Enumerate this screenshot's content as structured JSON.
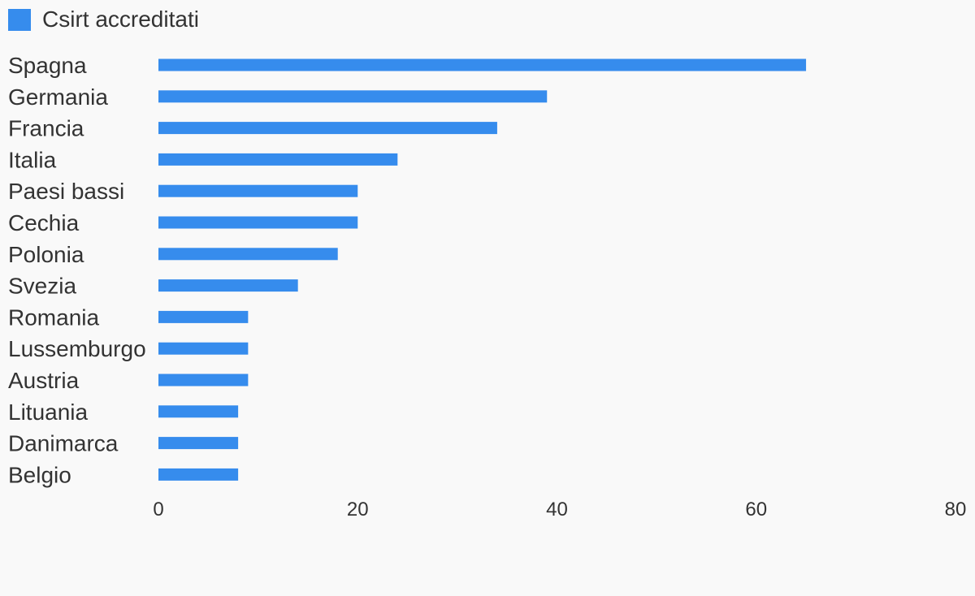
{
  "chart_data": {
    "type": "bar",
    "orientation": "horizontal",
    "categories": [
      "Spagna",
      "Germania",
      "Francia",
      "Italia",
      "Paesi bassi",
      "Cechia",
      "Polonia",
      "Svezia",
      "Romania",
      "Lussemburgo",
      "Austria",
      "Lituania",
      "Danimarca",
      "Belgio"
    ],
    "series": [
      {
        "name": "Csirt accreditati",
        "color": "#368ced",
        "values": [
          65,
          39,
          34,
          24,
          20,
          20,
          18,
          14,
          9,
          9,
          9,
          8,
          8,
          8
        ]
      }
    ],
    "xlim": [
      0,
      80
    ],
    "xticks": [
      0,
      20,
      40,
      60,
      80
    ],
    "legend_position": "top-left",
    "grid": false
  }
}
